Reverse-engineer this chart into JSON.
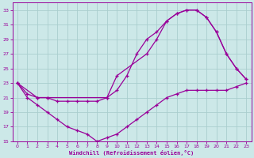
{
  "xlabel": "Windchill (Refroidissement éolien,°C)",
  "bg_color": "#cce8e8",
  "line_color": "#990099",
  "grid_color": "#aacece",
  "xlim": [
    -0.5,
    23.5
  ],
  "ylim": [
    15,
    34
  ],
  "xticks": [
    0,
    1,
    2,
    3,
    4,
    5,
    6,
    7,
    8,
    9,
    10,
    11,
    12,
    13,
    14,
    15,
    16,
    17,
    18,
    19,
    20,
    21,
    22,
    23
  ],
  "yticks": [
    15,
    17,
    19,
    21,
    23,
    25,
    27,
    29,
    31,
    33
  ],
  "curves": [
    {
      "x": [
        0,
        1,
        2,
        3,
        4,
        5,
        6,
        7,
        8,
        9,
        10,
        11,
        12,
        13,
        14,
        15,
        16,
        17,
        18,
        19,
        20,
        21,
        22,
        23
      ],
      "y": [
        23,
        21.5,
        21,
        21,
        20.5,
        20.5,
        20.5,
        20.5,
        20.5,
        21,
        22,
        24,
        27,
        29,
        30,
        31.5,
        32.5,
        33,
        33,
        32,
        30,
        27,
        25,
        23.5
      ]
    },
    {
      "x": [
        0,
        1,
        2,
        3,
        4,
        5,
        6,
        7,
        8,
        9,
        10,
        11,
        12,
        13,
        14,
        15,
        16,
        17,
        18,
        19,
        20,
        21,
        22,
        23
      ],
      "y": [
        23,
        21,
        20,
        19,
        18,
        17,
        16.5,
        16,
        15,
        15.5,
        16,
        17,
        18,
        19,
        20,
        21,
        21.5,
        22,
        22,
        22,
        22,
        22,
        22.5,
        23
      ]
    },
    {
      "x": [
        0,
        2,
        3,
        9,
        10,
        13,
        14,
        15,
        16,
        17,
        18,
        19,
        20,
        21,
        22,
        23
      ],
      "y": [
        23,
        21,
        21,
        21,
        24,
        27,
        29,
        31.5,
        32.5,
        33,
        33,
        32,
        30,
        27,
        25,
        23.5
      ]
    }
  ]
}
